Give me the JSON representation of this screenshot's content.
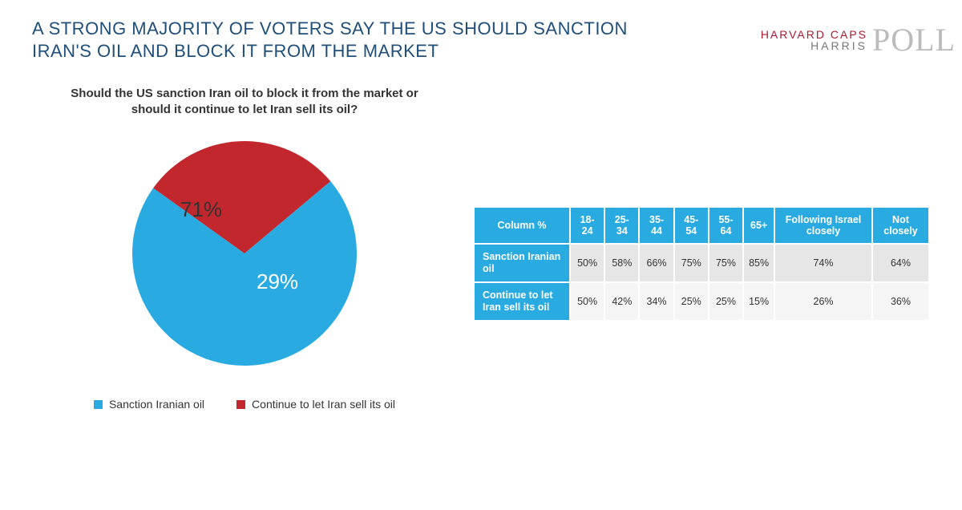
{
  "title": "A STRONG MAJORITY OF VOTERS SAY THE US SHOULD SANCTION IRAN'S OIL AND BLOCK IT FROM THE MARKET",
  "logo": {
    "line1": "HARVARD CAPS",
    "line2": "HARRIS",
    "poll": "POLL"
  },
  "question": "Should the US sanction Iran oil to block it from the market or should it continue to let Iran sell its oil?",
  "pie": {
    "type": "pie",
    "slices": [
      {
        "label": "Sanction Iranian oil",
        "value": 71,
        "display": "71%",
        "color": "#29abe2"
      },
      {
        "label": "Continue to let Iran sell its oil",
        "value": 29,
        "display": "29%",
        "color": "#c1272d"
      }
    ],
    "start_angle_deg": 50,
    "radius": 140,
    "label_fontsize": 26,
    "label_color": "#333333",
    "background_color": "#ffffff"
  },
  "legend": {
    "items": [
      {
        "label": "Sanction Iranian oil",
        "color": "#29abe2"
      },
      {
        "label": "Continue to let Iran sell its oil",
        "color": "#c1272d"
      }
    ],
    "swatch_size": 11,
    "fontsize": 14
  },
  "table": {
    "type": "table",
    "corner_label": "Column %",
    "columns": [
      "18-24",
      "25-34",
      "35-44",
      "45-54",
      "55-64",
      "65+",
      "Following Israel closely",
      "Not closely"
    ],
    "rows": [
      {
        "label": "Sanction Iranian oil",
        "cells": [
          "50%",
          "58%",
          "66%",
          "75%",
          "75%",
          "85%",
          "74%",
          "64%"
        ]
      },
      {
        "label": "Continue to let Iran sell its oil",
        "cells": [
          "50%",
          "42%",
          "34%",
          "25%",
          "25%",
          "15%",
          "26%",
          "36%"
        ]
      }
    ],
    "header_bg": "#29abe2",
    "header_fg": "#ffffff",
    "row_bg_odd": "#e6e6e6",
    "row_bg_even": "#f5f5f5",
    "border_color": "#ffffff",
    "fontsize": 12.5
  }
}
